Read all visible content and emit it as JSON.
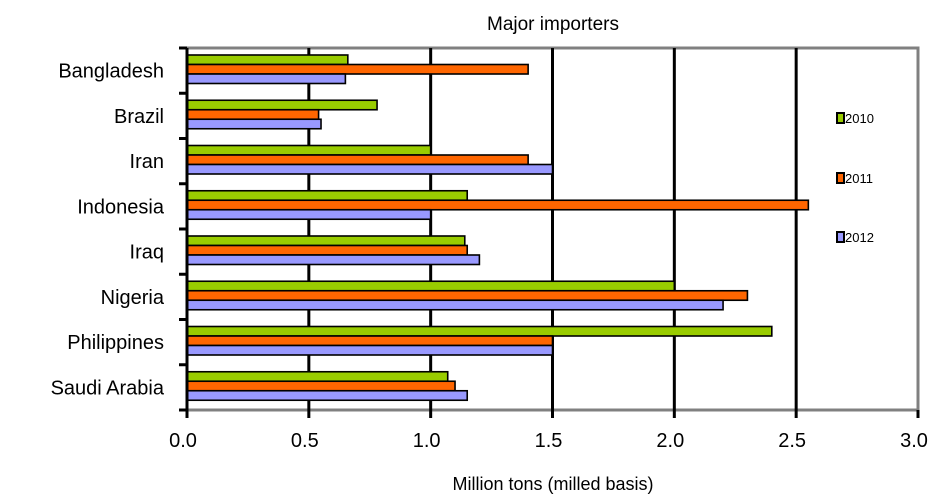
{
  "chart_data": {
    "type": "bar",
    "orientation": "horizontal",
    "title": "Major importers",
    "xlabel": "Million tons (milled basis)",
    "ylabel": "",
    "xlim": [
      0,
      3
    ],
    "xticks": [
      "0.0",
      "0.5",
      "1.0",
      "1.5",
      "2.0",
      "2.5",
      "3.0"
    ],
    "categories": [
      "Bangladesh",
      "Brazil",
      "Iran",
      "Indonesia",
      "Iraq",
      "Nigeria",
      "Philippines",
      "Saudi Arabia"
    ],
    "series": [
      {
        "name": "2010",
        "color": "#99cc00",
        "values": [
          0.66,
          0.78,
          1.0,
          1.15,
          1.14,
          2.0,
          2.4,
          1.07
        ]
      },
      {
        "name": "2011",
        "color": "#ff6600",
        "values": [
          1.4,
          0.54,
          1.4,
          2.55,
          1.15,
          2.3,
          1.5,
          1.1
        ]
      },
      {
        "name": "2012",
        "color": "#9999ff",
        "values": [
          0.65,
          0.55,
          1.5,
          1.0,
          1.2,
          2.2,
          1.5,
          1.15
        ]
      }
    ],
    "grid": "vertical",
    "legend": "right"
  }
}
